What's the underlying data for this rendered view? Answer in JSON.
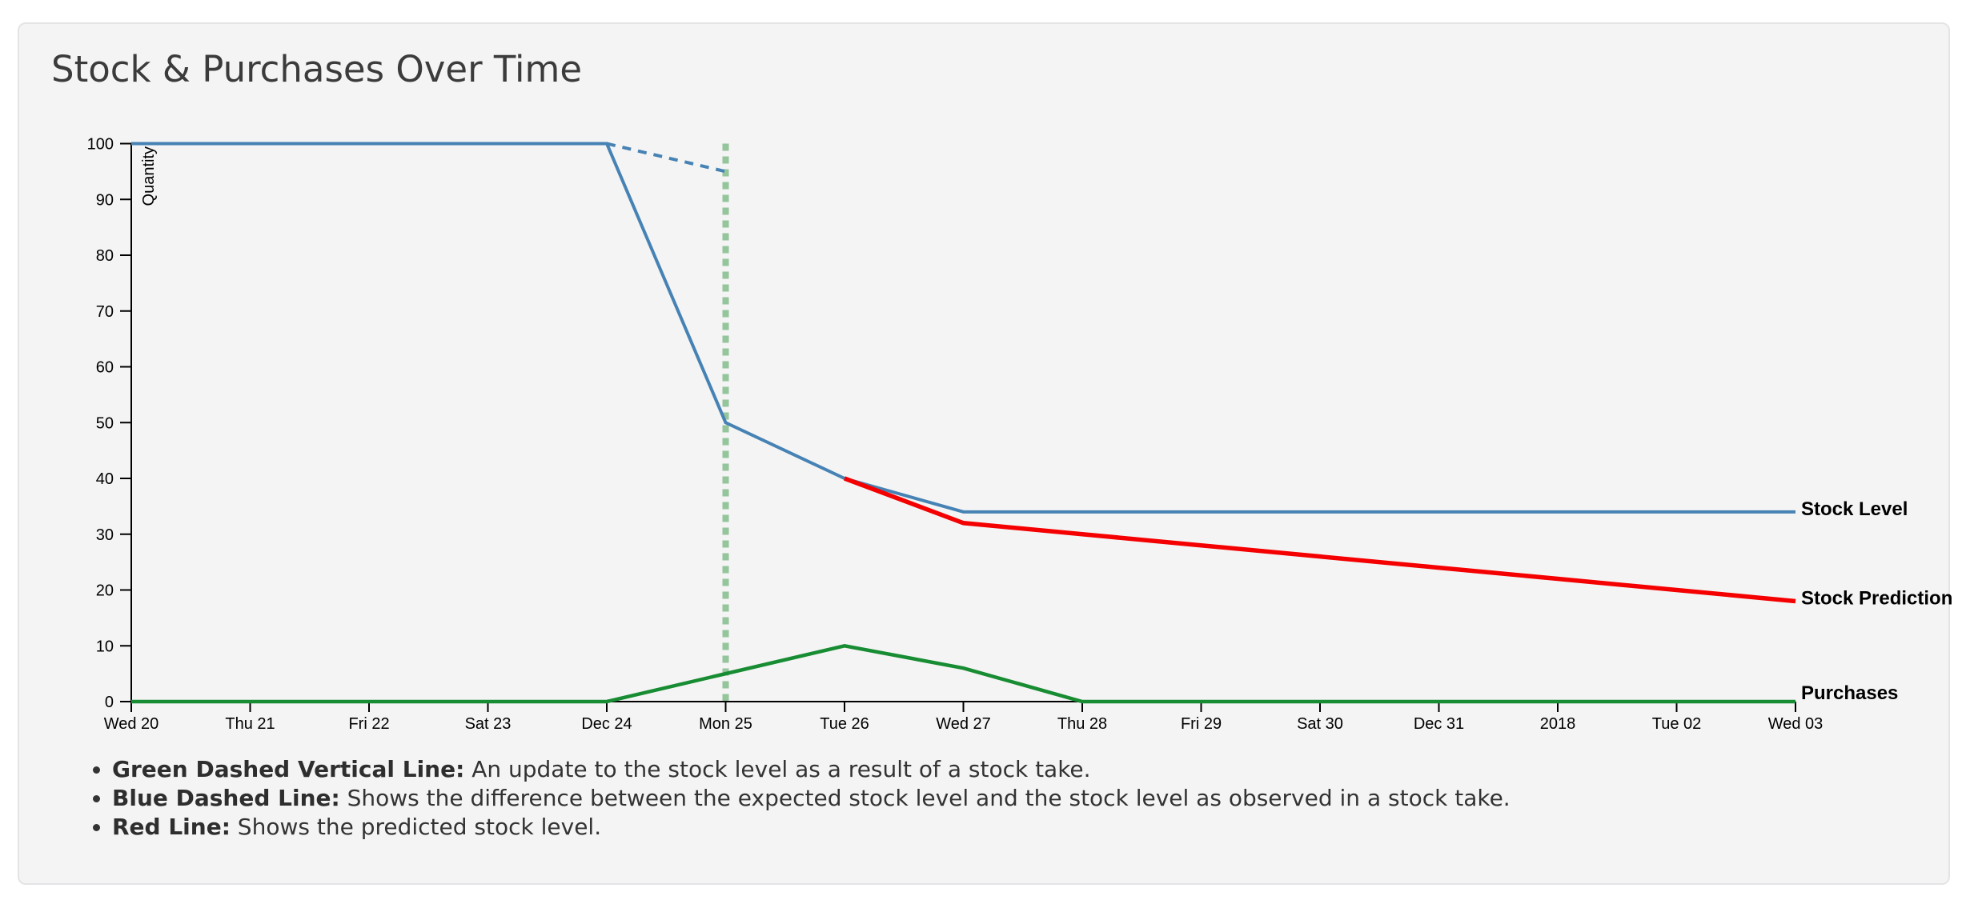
{
  "title": "Stock & Purchases Over Time",
  "colors": {
    "page_background": "#ffffff",
    "card_background": "#f4f4f4",
    "card_border": "#e4e4e6",
    "title_text": "#3b3b3b",
    "axis": "#000000",
    "stock_level_blue": "#4682b4",
    "stock_prediction_red": "#f50000",
    "purchases_green": "#178c32",
    "stocktake_dashed_green": "#94c59b"
  },
  "chart_data": {
    "type": "line",
    "title": "Stock & Purchases Over Time",
    "xlabel": "",
    "ylabel": "Quantity",
    "ylim": [
      0,
      100
    ],
    "y_ticks": [
      0,
      10,
      20,
      30,
      40,
      50,
      60,
      70,
      80,
      90,
      100
    ],
    "x_tick_labels": [
      "Wed 20",
      "Thu 21",
      "Fri 22",
      "Sat 23",
      "Dec 24",
      "Mon 25",
      "Tue 26",
      "Wed 27",
      "Thu 28",
      "Fri 29",
      "Sat 30",
      "Dec 31",
      "2018",
      "Tue 02",
      "Wed 03"
    ],
    "grid": false,
    "legend_position": "right-line-ends",
    "series": [
      {
        "name": "Stock Level",
        "color": "#4682b4",
        "style": "solid",
        "width": 4,
        "points": [
          [
            0,
            100
          ],
          [
            1,
            100
          ],
          [
            2,
            100
          ],
          [
            3,
            100
          ],
          [
            4,
            100
          ],
          [
            5,
            50
          ],
          [
            6,
            40
          ],
          [
            7,
            34
          ],
          [
            8,
            34
          ],
          [
            9,
            34
          ],
          [
            10,
            34
          ],
          [
            11,
            34
          ],
          [
            12,
            34
          ],
          [
            13,
            34
          ],
          [
            14,
            34
          ]
        ]
      },
      {
        "name": "Stock Prediction",
        "color": "#f50000",
        "style": "solid",
        "width": 5.5,
        "points": [
          [
            6,
            40
          ],
          [
            7,
            32
          ],
          [
            8,
            30
          ],
          [
            9,
            28
          ],
          [
            10,
            26
          ],
          [
            11,
            24
          ],
          [
            12,
            22
          ],
          [
            13,
            20
          ],
          [
            14,
            18
          ]
        ]
      },
      {
        "name": "Purchases",
        "color": "#178c32",
        "style": "solid",
        "width": 4.5,
        "points": [
          [
            0,
            0
          ],
          [
            1,
            0
          ],
          [
            2,
            0
          ],
          [
            3,
            0
          ],
          [
            4,
            0
          ],
          [
            5,
            5
          ],
          [
            6,
            10
          ],
          [
            7,
            6
          ],
          [
            8,
            0
          ],
          [
            9,
            0
          ],
          [
            10,
            0
          ],
          [
            11,
            0
          ],
          [
            12,
            0
          ],
          [
            13,
            0
          ],
          [
            14,
            0
          ]
        ]
      },
      {
        "name": "Expected vs Observed Stock",
        "color": "#4682b4",
        "style": "dashed",
        "width": 4,
        "points": [
          [
            4,
            100
          ],
          [
            5,
            95
          ]
        ]
      }
    ],
    "annotations": [
      {
        "type": "vline",
        "x_index": 5,
        "x_label": "Mon 25",
        "from": 0,
        "to": 100,
        "color": "#94c59b",
        "style": "dashed",
        "meaning": "An update to the stock level as a result of a stock take."
      }
    ],
    "legend": [
      {
        "label": "Stock Level",
        "series": "Stock Level",
        "color": "#4682b4"
      },
      {
        "label": "Stock Prediction",
        "series": "Stock Prediction",
        "color": "#f50000"
      },
      {
        "label": "Purchases",
        "series": "Purchases",
        "color": "#178c32"
      }
    ]
  },
  "notes": [
    {
      "lead": "Green Dashed Vertical Line:",
      "text": " An update to the stock level as a result of a stock take."
    },
    {
      "lead": "Blue Dashed Line:",
      "text": " Shows the difference between the expected stock level and the stock level as observed in a stock take."
    },
    {
      "lead": "Red Line:",
      "text": " Shows the predicted stock level."
    }
  ]
}
